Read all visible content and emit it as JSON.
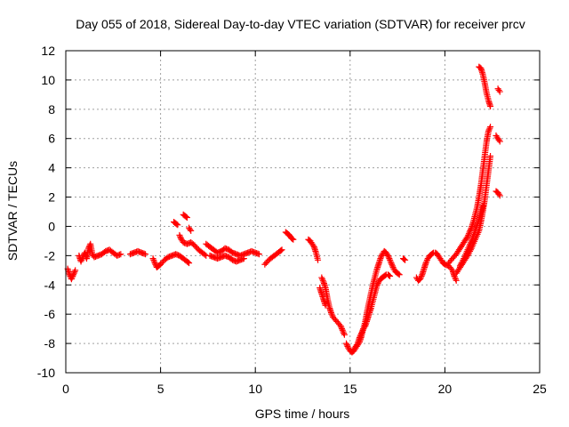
{
  "chart_data": {
    "type": "scatter",
    "title": "Day 055 of 2018, Sidereal Day-to-day VTEC variation (SDTVAR) for receiver prcv",
    "xlabel": "GPS time / hours",
    "ylabel": "SDTVAR / TECUs",
    "xlim": [
      0,
      25
    ],
    "ylim": [
      -10,
      12
    ],
    "xticks": [
      0,
      5,
      10,
      15,
      20,
      25
    ],
    "yticks": [
      -10,
      -8,
      -6,
      -4,
      -2,
      0,
      2,
      4,
      6,
      8,
      10,
      12
    ],
    "grid": true,
    "marker": "+",
    "marker_color": "#ff0000",
    "series": [
      {
        "name": "SDTVAR",
        "segments": [
          [
            [
              0.1,
              -2.9
            ],
            [
              0.2,
              -3.3
            ],
            [
              0.3,
              -3.6
            ],
            [
              0.4,
              -3.3
            ],
            [
              0.5,
              -3.0
            ]
          ],
          [
            [
              0.7,
              -2.0
            ],
            [
              0.8,
              -2.4
            ],
            [
              0.9,
              -2.1
            ],
            [
              1.0,
              -1.8
            ],
            [
              1.1,
              -2.2
            ],
            [
              1.2,
              -1.5
            ],
            [
              1.3,
              -1.2
            ],
            [
              1.4,
              -1.9
            ],
            [
              1.5,
              -2.1
            ],
            [
              1.7,
              -2.0
            ],
            [
              1.9,
              -1.9
            ],
            [
              2.1,
              -1.7
            ],
            [
              2.3,
              -1.6
            ],
            [
              2.5,
              -1.8
            ],
            [
              2.7,
              -2.0
            ],
            [
              2.9,
              -1.9
            ]
          ],
          [
            [
              3.4,
              -1.9
            ],
            [
              3.6,
              -1.8
            ],
            [
              3.8,
              -1.7
            ],
            [
              4.0,
              -1.8
            ],
            [
              4.2,
              -1.9
            ]
          ],
          [
            [
              4.6,
              -2.2
            ],
            [
              4.7,
              -2.5
            ],
            [
              4.8,
              -2.8
            ],
            [
              4.9,
              -2.7
            ],
            [
              5.0,
              -2.6
            ],
            [
              5.2,
              -2.3
            ],
            [
              5.4,
              -2.1
            ],
            [
              5.6,
              -2.0
            ],
            [
              5.8,
              -1.9
            ],
            [
              6.0,
              -2.0
            ],
            [
              6.2,
              -2.2
            ],
            [
              6.4,
              -2.4
            ],
            [
              6.5,
              -2.5
            ]
          ],
          [
            [
              5.7,
              0.3
            ],
            [
              5.8,
              0.2
            ],
            [
              5.9,
              0.1
            ]
          ],
          [
            [
              6.2,
              0.8
            ],
            [
              6.3,
              0.7
            ],
            [
              6.4,
              0.6
            ]
          ],
          [
            [
              6.0,
              -0.6
            ],
            [
              6.1,
              -0.9
            ],
            [
              6.2,
              -1.1
            ],
            [
              6.4,
              -1.2
            ],
            [
              6.6,
              -1.1
            ],
            [
              6.8,
              -1.3
            ],
            [
              7.0,
              -1.6
            ],
            [
              7.2,
              -1.8
            ],
            [
              7.4,
              -2.0
            ]
          ],
          [
            [
              6.5,
              -0.1
            ],
            [
              6.6,
              -0.3
            ]
          ],
          [
            [
              7.4,
              -1.2
            ],
            [
              7.6,
              -1.4
            ],
            [
              7.8,
              -1.6
            ],
            [
              8.0,
              -1.8
            ],
            [
              8.2,
              -1.7
            ],
            [
              8.4,
              -1.5
            ],
            [
              8.6,
              -1.6
            ],
            [
              8.8,
              -1.8
            ],
            [
              9.0,
              -1.9
            ],
            [
              9.2,
              -2.0
            ],
            [
              9.4,
              -1.9
            ],
            [
              9.6,
              -1.8
            ],
            [
              9.8,
              -1.7
            ],
            [
              10.0,
              -1.8
            ],
            [
              10.2,
              -1.9
            ]
          ],
          [
            [
              7.6,
              -2.0
            ],
            [
              7.8,
              -2.1
            ],
            [
              8.0,
              -2.2
            ],
            [
              8.2,
              -2.1
            ],
            [
              8.4,
              -2.0
            ],
            [
              8.6,
              -2.1
            ],
            [
              8.8,
              -2.3
            ],
            [
              9.0,
              -2.4
            ],
            [
              9.2,
              -2.3
            ],
            [
              9.4,
              -2.2
            ]
          ],
          [
            [
              10.5,
              -2.6
            ],
            [
              10.7,
              -2.3
            ],
            [
              10.9,
              -2.1
            ],
            [
              11.1,
              -1.9
            ],
            [
              11.3,
              -1.7
            ],
            [
              11.4,
              -1.6
            ]
          ],
          [
            [
              11.6,
              -0.4
            ],
            [
              11.7,
              -0.5
            ],
            [
              11.8,
              -0.6
            ],
            [
              11.9,
              -0.8
            ],
            [
              12.0,
              -0.9
            ]
          ],
          [
            [
              12.8,
              -0.9
            ],
            [
              12.9,
              -1.0
            ],
            [
              13.0,
              -1.2
            ],
            [
              13.1,
              -1.4
            ],
            [
              13.2,
              -1.8
            ],
            [
              13.3,
              -2.3
            ]
          ],
          [
            [
              13.5,
              -3.5
            ],
            [
              13.6,
              -3.8
            ],
            [
              13.7,
              -4.2
            ],
            [
              13.8,
              -4.9
            ],
            [
              13.9,
              -5.5
            ],
            [
              14.0,
              -5.9
            ],
            [
              14.1,
              -6.2
            ],
            [
              14.3,
              -6.5
            ],
            [
              14.5,
              -6.8
            ],
            [
              14.6,
              -7.1
            ],
            [
              14.7,
              -7.4
            ]
          ],
          [
            [
              13.4,
              -4.2
            ],
            [
              13.5,
              -4.6
            ],
            [
              13.6,
              -5.0
            ],
            [
              13.7,
              -5.4
            ]
          ],
          [
            [
              14.8,
              -8.0
            ],
            [
              14.9,
              -8.3
            ],
            [
              15.0,
              -8.5
            ],
            [
              15.1,
              -8.6
            ],
            [
              15.2,
              -8.5
            ],
            [
              15.3,
              -8.3
            ],
            [
              15.4,
              -8.1
            ],
            [
              15.5,
              -7.9
            ],
            [
              15.6,
              -7.5
            ],
            [
              15.7,
              -7.0
            ],
            [
              15.8,
              -6.5
            ],
            [
              15.9,
              -5.8
            ],
            [
              16.0,
              -5.2
            ],
            [
              16.1,
              -4.6
            ],
            [
              16.2,
              -4.0
            ],
            [
              16.3,
              -3.5
            ],
            [
              16.4,
              -3.0
            ],
            [
              16.5,
              -2.6
            ],
            [
              16.6,
              -2.2
            ],
            [
              16.7,
              -1.9
            ],
            [
              16.8,
              -1.7
            ],
            [
              16.9,
              -1.8
            ],
            [
              17.0,
              -2.0
            ],
            [
              17.1,
              -2.3
            ],
            [
              17.2,
              -2.6
            ],
            [
              17.3,
              -2.9
            ],
            [
              17.4,
              -3.1
            ],
            [
              17.5,
              -3.2
            ],
            [
              17.6,
              -3.3
            ]
          ],
          [
            [
              15.2,
              -8.4
            ],
            [
              15.3,
              -8.2
            ],
            [
              15.4,
              -8.0
            ],
            [
              15.5,
              -7.6
            ],
            [
              15.6,
              -7.3
            ],
            [
              15.7,
              -7.0
            ],
            [
              15.8,
              -6.8
            ],
            [
              15.9,
              -6.4
            ],
            [
              16.0,
              -6.0
            ],
            [
              16.1,
              -5.6
            ],
            [
              16.2,
              -5.1
            ],
            [
              16.3,
              -4.6
            ],
            [
              16.4,
              -4.1
            ],
            [
              16.5,
              -3.8
            ],
            [
              16.6,
              -3.6
            ],
            [
              16.7,
              -3.5
            ],
            [
              16.8,
              -3.4
            ],
            [
              16.9,
              -3.3
            ],
            [
              17.0,
              -3.3
            ],
            [
              17.1,
              -3.4
            ]
          ],
          [
            [
              17.8,
              -2.2
            ],
            [
              17.9,
              -2.3
            ]
          ],
          [
            [
              18.5,
              -3.5
            ],
            [
              18.6,
              -3.7
            ],
            [
              18.7,
              -3.6
            ],
            [
              18.8,
              -3.3
            ],
            [
              18.9,
              -2.9
            ],
            [
              19.0,
              -2.5
            ],
            [
              19.1,
              -2.2
            ],
            [
              19.2,
              -2.0
            ],
            [
              19.3,
              -1.9
            ],
            [
              19.4,
              -1.8
            ],
            [
              19.5,
              -1.8
            ],
            [
              19.6,
              -1.9
            ],
            [
              19.7,
              -2.1
            ],
            [
              19.8,
              -2.3
            ],
            [
              19.9,
              -2.5
            ],
            [
              20.0,
              -2.6
            ],
            [
              20.2,
              -2.7
            ],
            [
              20.4,
              -3.0
            ],
            [
              20.5,
              -3.4
            ],
            [
              20.6,
              -3.7
            ]
          ],
          [
            [
              20.2,
              -2.5
            ],
            [
              20.4,
              -2.2
            ],
            [
              20.6,
              -1.9
            ],
            [
              20.8,
              -1.5
            ],
            [
              21.0,
              -1.1
            ],
            [
              21.2,
              -0.7
            ],
            [
              21.3,
              -0.4
            ],
            [
              21.4,
              -0.1
            ],
            [
              21.5,
              0.3
            ],
            [
              21.6,
              0.8
            ],
            [
              21.7,
              1.3
            ],
            [
              21.8,
              2.0
            ],
            [
              21.9,
              2.8
            ],
            [
              22.0,
              3.8
            ],
            [
              22.1,
              4.8
            ],
            [
              22.2,
              5.8
            ],
            [
              22.3,
              6.5
            ],
            [
              22.4,
              6.8
            ]
          ],
          [
            [
              20.6,
              -3.2
            ],
            [
              20.8,
              -2.8
            ],
            [
              21.0,
              -2.4
            ],
            [
              21.2,
              -2.0
            ],
            [
              21.4,
              -1.5
            ],
            [
              21.6,
              -0.9
            ],
            [
              21.8,
              -0.3
            ],
            [
              21.9,
              0.3
            ],
            [
              22.0,
              1.0
            ],
            [
              22.1,
              1.8
            ],
            [
              22.2,
              2.8
            ],
            [
              22.3,
              3.8
            ],
            [
              22.4,
              4.8
            ]
          ],
          [
            [
              20.8,
              -2.7
            ],
            [
              21.0,
              -2.2
            ],
            [
              21.2,
              -1.6
            ],
            [
              21.4,
              -1.0
            ],
            [
              21.6,
              -0.3
            ],
            [
              21.8,
              0.5
            ],
            [
              22.0,
              1.4
            ]
          ],
          [
            [
              21.8,
              10.9
            ],
            [
              21.9,
              10.8
            ],
            [
              22.0,
              10.4
            ],
            [
              22.1,
              9.8
            ],
            [
              22.2,
              9.1
            ],
            [
              22.3,
              8.6
            ],
            [
              22.4,
              8.2
            ]
          ],
          [
            [
              22.7,
              6.2
            ],
            [
              22.8,
              6.0
            ],
            [
              22.9,
              5.8
            ]
          ],
          [
            [
              22.8,
              9.4
            ],
            [
              22.9,
              9.2
            ]
          ],
          [
            [
              22.7,
              2.4
            ],
            [
              22.8,
              2.3
            ],
            [
              22.9,
              2.1
            ]
          ]
        ]
      }
    ]
  }
}
